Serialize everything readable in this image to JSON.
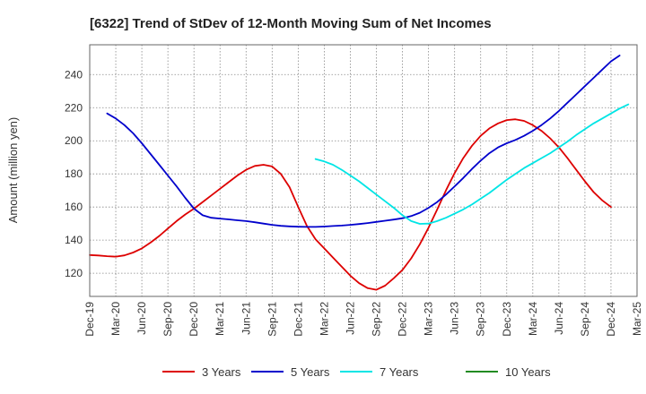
{
  "chart_data": {
    "type": "line",
    "title": "[6322]  Trend of StDev of 12-Month Moving Sum of Net Incomes",
    "xlabel": "",
    "ylabel": "Amount (million yen)",
    "ylim": [
      106,
      258
    ],
    "yticks": [
      120,
      140,
      160,
      180,
      200,
      220,
      240
    ],
    "x_range": [
      "2019-12",
      "2025-03"
    ],
    "x_ticks": [
      "Dec-19",
      "Mar-20",
      "Jun-20",
      "Sep-20",
      "Dec-20",
      "Mar-21",
      "Jun-21",
      "Sep-21",
      "Dec-21",
      "Mar-22",
      "Jun-22",
      "Sep-22",
      "Dec-22",
      "Mar-23",
      "Jun-23",
      "Sep-23",
      "Dec-23",
      "Mar-24",
      "Jun-24",
      "Sep-24",
      "Dec-24",
      "Mar-25"
    ],
    "grid": true,
    "legend_position": "bottom",
    "series": [
      {
        "name": "3 Years",
        "color": "#dd0000",
        "points": [
          [
            "2019-12",
            131
          ],
          [
            "2020-01",
            130.7
          ],
          [
            "2020-02",
            130.3
          ],
          [
            "2020-03",
            130
          ],
          [
            "2020-04",
            130.8
          ],
          [
            "2020-05",
            132.5
          ],
          [
            "2020-06",
            135
          ],
          [
            "2020-07",
            138.5
          ],
          [
            "2020-08",
            142.5
          ],
          [
            "2020-09",
            147
          ],
          [
            "2020-10",
            151.5
          ],
          [
            "2020-11",
            155.5
          ],
          [
            "2020-12",
            159
          ],
          [
            "2021-01",
            163
          ],
          [
            "2021-02",
            167
          ],
          [
            "2021-03",
            171
          ],
          [
            "2021-04",
            175
          ],
          [
            "2021-05",
            179
          ],
          [
            "2021-06",
            182.5
          ],
          [
            "2021-07",
            184.8
          ],
          [
            "2021-08",
            185.5
          ],
          [
            "2021-09",
            184.5
          ],
          [
            "2021-10",
            180
          ],
          [
            "2021-11",
            172
          ],
          [
            "2021-12",
            160
          ],
          [
            "2022-01",
            148.5
          ],
          [
            "2022-02",
            140.5
          ],
          [
            "2022-03",
            135
          ],
          [
            "2022-04",
            129.5
          ],
          [
            "2022-05",
            124
          ],
          [
            "2022-06",
            118.5
          ],
          [
            "2022-07",
            114
          ],
          [
            "2022-08",
            111
          ],
          [
            "2022-09",
            110
          ],
          [
            "2022-10",
            112.5
          ],
          [
            "2022-11",
            117
          ],
          [
            "2022-12",
            122
          ],
          [
            "2023-01",
            129
          ],
          [
            "2023-02",
            137.5
          ],
          [
            "2023-03",
            147.5
          ],
          [
            "2023-04",
            158.5
          ],
          [
            "2023-05",
            170
          ],
          [
            "2023-06",
            180.5
          ],
          [
            "2023-07",
            189.5
          ],
          [
            "2023-08",
            197
          ],
          [
            "2023-09",
            203
          ],
          [
            "2023-10",
            207.5
          ],
          [
            "2023-11",
            210.5
          ],
          [
            "2023-12",
            212.5
          ],
          [
            "2024-01",
            213
          ],
          [
            "2024-02",
            212
          ],
          [
            "2024-03",
            209.5
          ],
          [
            "2024-04",
            206
          ],
          [
            "2024-05",
            201.5
          ],
          [
            "2024-06",
            196
          ],
          [
            "2024-07",
            189.5
          ],
          [
            "2024-08",
            182.5
          ],
          [
            "2024-09",
            175.5
          ],
          [
            "2024-10",
            169
          ],
          [
            "2024-11",
            164
          ],
          [
            "2024-12",
            160
          ]
        ]
      },
      {
        "name": "5 Years",
        "color": "#0000cc",
        "points": [
          [
            "2020-02",
            216.5
          ],
          [
            "2020-03",
            213.5
          ],
          [
            "2020-04",
            209.5
          ],
          [
            "2020-05",
            204.5
          ],
          [
            "2020-06",
            198.5
          ],
          [
            "2020-07",
            192
          ],
          [
            "2020-08",
            185.5
          ],
          [
            "2020-09",
            179
          ],
          [
            "2020-10",
            172.5
          ],
          [
            "2020-11",
            165.5
          ],
          [
            "2020-12",
            159
          ],
          [
            "2021-01",
            155
          ],
          [
            "2021-02",
            153.5
          ],
          [
            "2021-03",
            153
          ],
          [
            "2021-04",
            152.5
          ],
          [
            "2021-05",
            152
          ],
          [
            "2021-06",
            151.5
          ],
          [
            "2021-07",
            150.8
          ],
          [
            "2021-08",
            150
          ],
          [
            "2021-09",
            149.2
          ],
          [
            "2021-10",
            148.6
          ],
          [
            "2021-11",
            148.3
          ],
          [
            "2021-12",
            148.1
          ],
          [
            "2022-01",
            148
          ],
          [
            "2022-02",
            148
          ],
          [
            "2022-03",
            148.2
          ],
          [
            "2022-04",
            148.5
          ],
          [
            "2022-05",
            148.8
          ],
          [
            "2022-06",
            149.2
          ],
          [
            "2022-07",
            149.7
          ],
          [
            "2022-08",
            150.3
          ],
          [
            "2022-09",
            151
          ],
          [
            "2022-10",
            151.7
          ],
          [
            "2022-11",
            152.4
          ],
          [
            "2022-12",
            153.2
          ],
          [
            "2023-01",
            154.5
          ],
          [
            "2023-02",
            156.5
          ],
          [
            "2023-03",
            159.5
          ],
          [
            "2023-04",
            163
          ],
          [
            "2023-05",
            167.5
          ],
          [
            "2023-06",
            172.5
          ],
          [
            "2023-07",
            177.5
          ],
          [
            "2023-08",
            183
          ],
          [
            "2023-09",
            188
          ],
          [
            "2023-10",
            192.5
          ],
          [
            "2023-11",
            196
          ],
          [
            "2023-12",
            198.5
          ],
          [
            "2024-01",
            200.5
          ],
          [
            "2024-02",
            203
          ],
          [
            "2024-03",
            206
          ],
          [
            "2024-04",
            209.5
          ],
          [
            "2024-05",
            213.5
          ],
          [
            "2024-06",
            218
          ],
          [
            "2024-07",
            223
          ],
          [
            "2024-08",
            228
          ],
          [
            "2024-09",
            233
          ],
          [
            "2024-10",
            238
          ],
          [
            "2024-11",
            243
          ],
          [
            "2024-12",
            248
          ],
          [
            "2025-01",
            251.5
          ]
        ]
      },
      {
        "name": "7 Years",
        "color": "#00e5e5",
        "points": [
          [
            "2022-02",
            189
          ],
          [
            "2022-03",
            187.5
          ],
          [
            "2022-04",
            185.5
          ],
          [
            "2022-05",
            182.5
          ],
          [
            "2022-06",
            179
          ],
          [
            "2022-07",
            175.5
          ],
          [
            "2022-08",
            171.5
          ],
          [
            "2022-09",
            167.5
          ],
          [
            "2022-10",
            163.5
          ],
          [
            "2022-11",
            159.5
          ],
          [
            "2022-12",
            155
          ],
          [
            "2023-01",
            151.5
          ],
          [
            "2023-02",
            149.8
          ],
          [
            "2023-03",
            150
          ],
          [
            "2023-04",
            151.5
          ],
          [
            "2023-05",
            153.5
          ],
          [
            "2023-06",
            156
          ],
          [
            "2023-07",
            158.5
          ],
          [
            "2023-08",
            161.5
          ],
          [
            "2023-09",
            165
          ],
          [
            "2023-10",
            168.5
          ],
          [
            "2023-11",
            172.5
          ],
          [
            "2023-12",
            176.5
          ],
          [
            "2024-01",
            180
          ],
          [
            "2024-02",
            183.5
          ],
          [
            "2024-03",
            186.5
          ],
          [
            "2024-04",
            189.5
          ],
          [
            "2024-05",
            192.5
          ],
          [
            "2024-06",
            196
          ],
          [
            "2024-07",
            199.5
          ],
          [
            "2024-08",
            203.5
          ],
          [
            "2024-09",
            207
          ],
          [
            "2024-10",
            210.5
          ],
          [
            "2024-11",
            213.5
          ],
          [
            "2024-12",
            216.5
          ],
          [
            "2025-01",
            219.5
          ],
          [
            "2025-02",
            222
          ]
        ]
      },
      {
        "name": "10 Years",
        "color": "#228b22",
        "points": []
      }
    ]
  }
}
